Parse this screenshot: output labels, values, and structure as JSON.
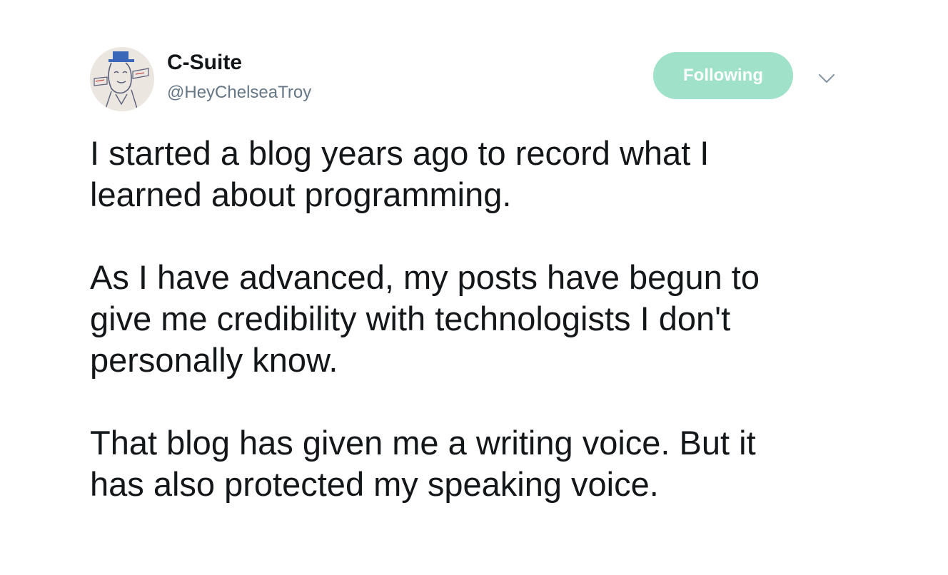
{
  "author": {
    "display_name": "C-Suite",
    "handle": "@HeyChelseaTroy",
    "avatar_icon": "cartoon-drawing-avatar"
  },
  "follow_button": {
    "label": "Following",
    "color": "#9fe1c9"
  },
  "menu": {
    "icon": "chevron-down-icon"
  },
  "tweet": {
    "paragraphs": [
      {
        "lines": [
          "I started a blog years ago to record what I",
          "learned about programming."
        ]
      },
      {
        "lines": [
          "As I have advanced, my posts have begun to",
          "give me credibility with technologists I don't",
          "personally know."
        ]
      },
      {
        "lines": [
          "That blog has given me a writing voice. But it",
          "has also protected my speaking voice."
        ]
      }
    ]
  }
}
